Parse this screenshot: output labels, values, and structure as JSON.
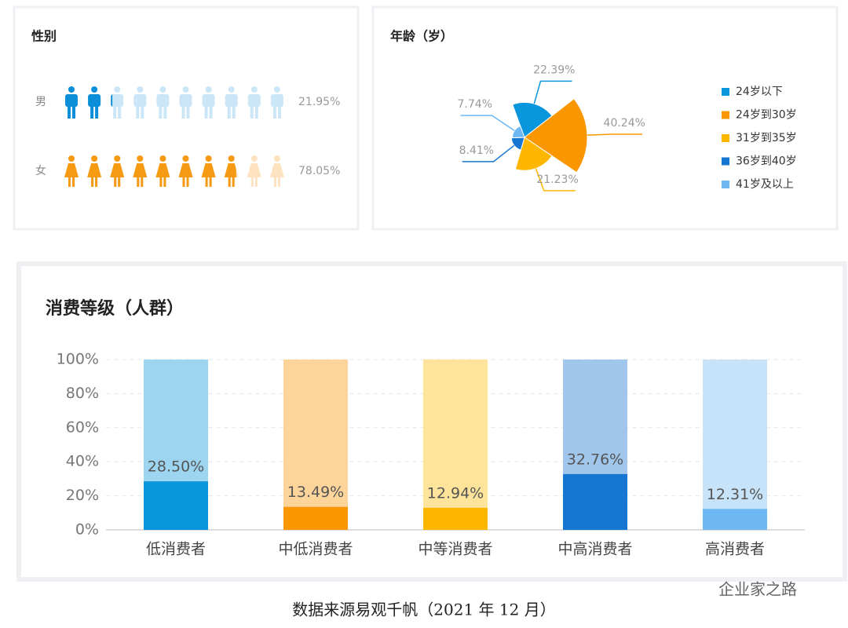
{
  "chart_data": [
    {
      "type": "pictograph",
      "title": "性别",
      "categories": [
        "男",
        "女"
      ],
      "values": [
        21.95,
        78.05
      ],
      "value_labels": [
        "21.95%",
        "78.05%"
      ],
      "colors": [
        "#0a8fd8",
        "#f59a12"
      ],
      "light_colors": [
        "#cbe6f6",
        "#fde3c0"
      ]
    },
    {
      "type": "rose",
      "title": "年龄（岁）",
      "categories": [
        "24岁以下",
        "24岁到30岁",
        "31岁到35岁",
        "36岁到40岁",
        "41岁及以上"
      ],
      "values": [
        22.39,
        40.24,
        21.23,
        8.41,
        7.74
      ],
      "value_labels": [
        "22.39%",
        "40.24%",
        "21.23%",
        "8.41%",
        "7.74%"
      ],
      "colors": [
        "#0a96dc",
        "#fa9600",
        "#fdb700",
        "#1677d2",
        "#6db8f2"
      ],
      "legend": "right"
    },
    {
      "type": "percent_bar",
      "title": "消费等级（人群）",
      "categories": [
        "低消费者",
        "中低消费者",
        "中等消费者",
        "中高消费者",
        "高消费者"
      ],
      "values": [
        28.5,
        13.49,
        12.94,
        32.76,
        12.31
      ],
      "value_labels": [
        "28.50%",
        "13.49%",
        "12.94%",
        "32.76%",
        "12.31%"
      ],
      "colors": [
        "#0a96dc",
        "#fa9600",
        "#fdb700",
        "#1677d2",
        "#6db8f2"
      ],
      "light_colors": [
        "#9dd4f0",
        "#fdd499",
        "#fde49a",
        "#a0c6ec",
        "#c6e3f9"
      ],
      "ylim": [
        0,
        100
      ],
      "yticks": [
        {
          "value": 0,
          "label": "0%"
        },
        {
          "value": 20,
          "label": "20%"
        },
        {
          "value": 40,
          "label": "40%"
        },
        {
          "value": 60,
          "label": "60%"
        },
        {
          "value": 80,
          "label": "80%"
        },
        {
          "value": 100,
          "label": "100%"
        }
      ],
      "grid": true
    }
  ],
  "footer": "数据来源易观千帆（2021 年 12 月）",
  "watermark": "企业家之路"
}
